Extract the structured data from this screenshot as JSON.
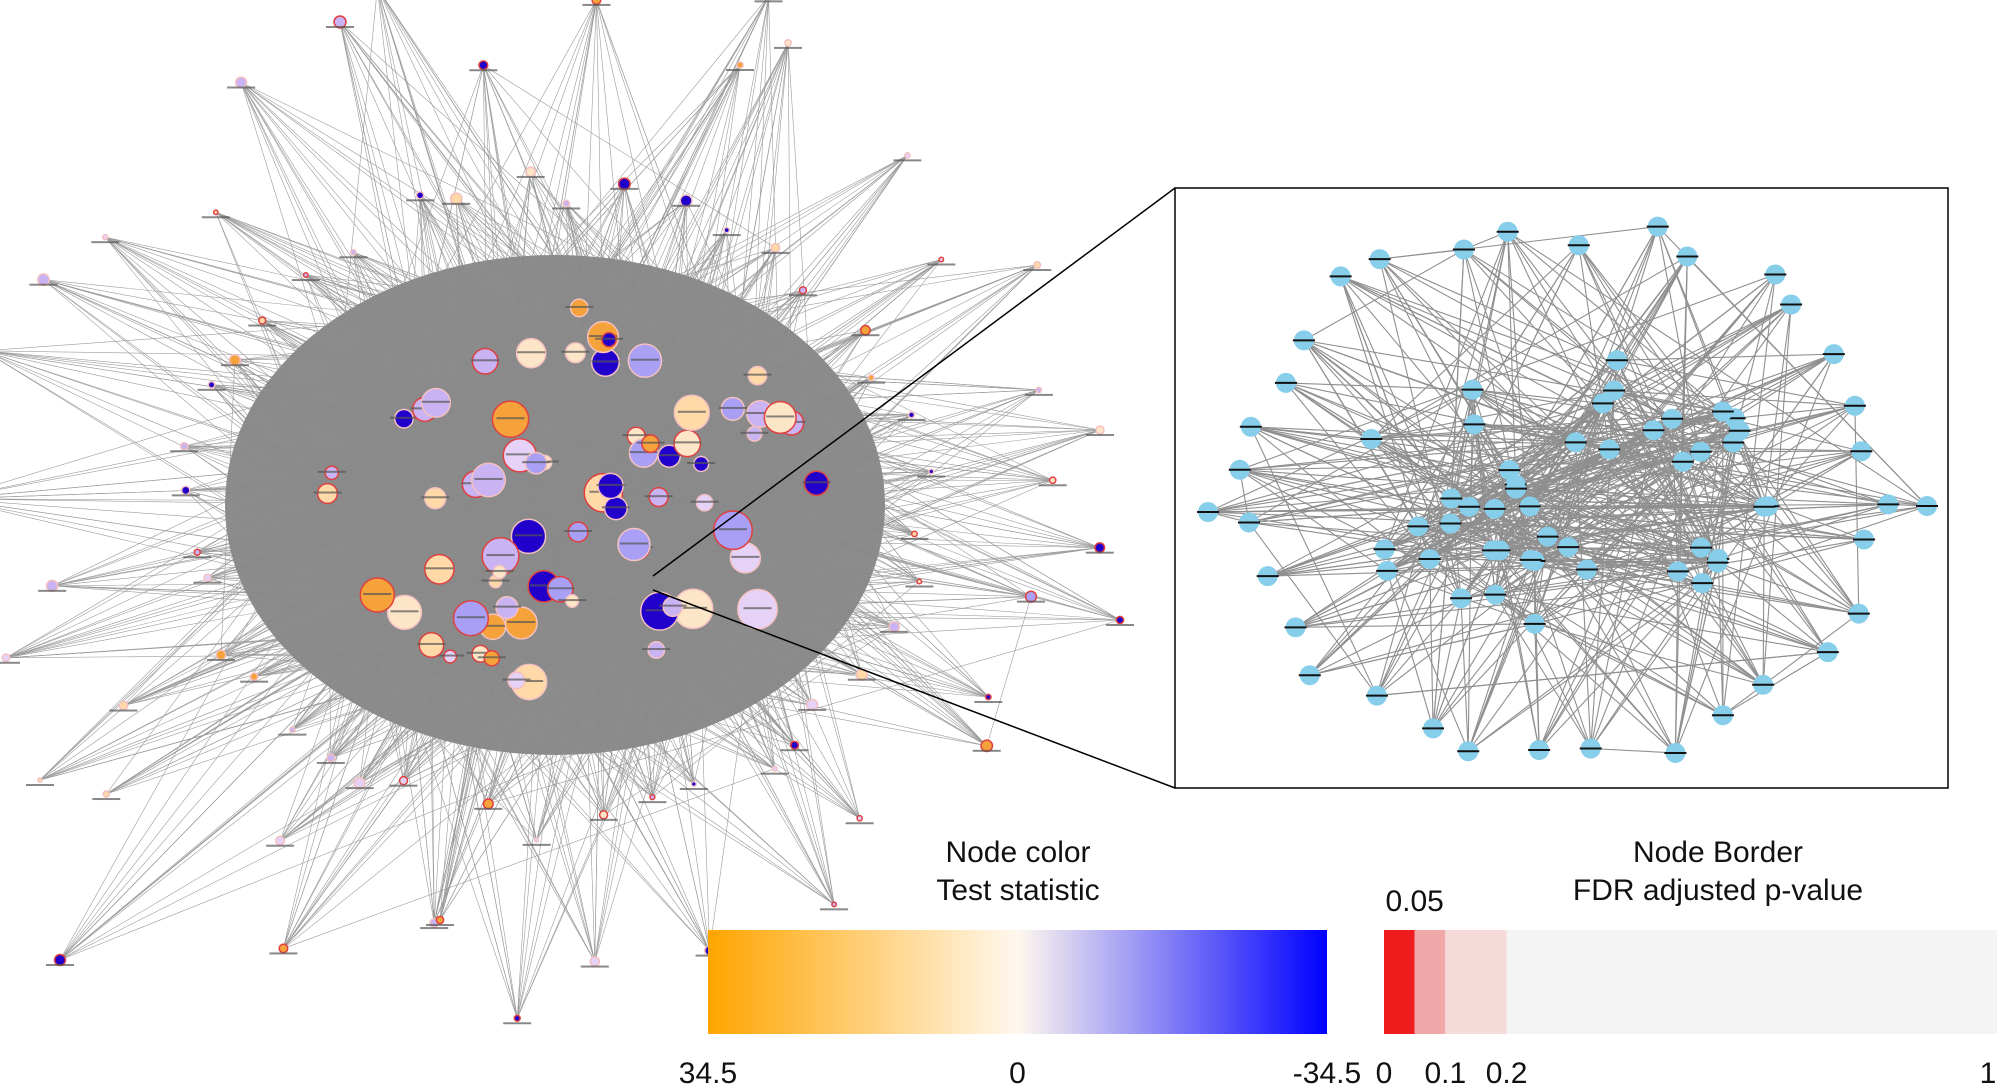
{
  "color_legend": {
    "title": [
      "Node color",
      "Test statistic"
    ],
    "ticks": [
      34.5,
      0,
      -34.5
    ],
    "colors": [
      "#ffa500",
      "#fff8ee",
      "#0000ff"
    ]
  },
  "border_legend": {
    "title": [
      "Node Border",
      "FDR adjusted p-value"
    ],
    "ticks": [
      0,
      0.05,
      0.1,
      0.2,
      1
    ],
    "colors": [
      "#ee1c1c",
      "#f0a8a8",
      "#f6dada",
      "#f4f4f4"
    ]
  }
}
